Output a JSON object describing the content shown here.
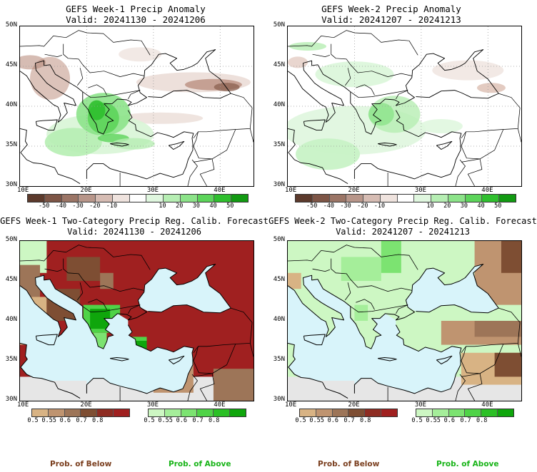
{
  "panels": [
    {
      "id": "tl",
      "title": "GEFS Week-1 Precip Anomaly",
      "valid": "Valid: 20241130 - 20241206"
    },
    {
      "id": "tr",
      "title": "GEFS Week-2 Precip Anomaly",
      "valid": "Valid: 20241207 - 20241213"
    },
    {
      "id": "bl",
      "title": "GEFS Week-1 Two-Category Precip Reg. Calib. Forecast",
      "valid": "Valid: 20241130 - 20241206"
    },
    {
      "id": "br",
      "title": "GEFS Week-2 Two-Category Precip Reg. Calib. Forecast",
      "valid": "Valid: 20241207 - 20241213"
    }
  ],
  "axes": {
    "lat_labels": [
      "50N",
      "45N",
      "40N",
      "35N",
      "30N"
    ],
    "lon_labels": [
      "10E",
      "20E",
      "30E",
      "40E"
    ]
  },
  "anomaly_colorbar": {
    "ticks": [
      "-50",
      "-40",
      "-30",
      "-20",
      "-10",
      "10",
      "20",
      "30",
      "40",
      "50"
    ],
    "colors": [
      "#5c3a2c",
      "#7d5546",
      "#9b7566",
      "#b8968a",
      "#d6bcb3",
      "#efe3de",
      "#ffffff",
      "#e0f7df",
      "#b6eeb3",
      "#8ce389",
      "#5cd45a",
      "#2fbf2e",
      "#129a12"
    ]
  },
  "prob_colorbar": {
    "below_ticks": [
      "0.5",
      "0.55",
      "0.6",
      "0.7",
      "0.8"
    ],
    "above_ticks": [
      "0.5",
      "0.55",
      "0.6",
      "0.7",
      "0.8"
    ],
    "below_colors": [
      "#d8b384",
      "#bf9470",
      "#9d7558",
      "#7e4e33",
      "#8e2c22",
      "#a02020"
    ],
    "above_colors": [
      "#cdf7c3",
      "#a5ee9a",
      "#7ce371",
      "#4fd347",
      "#2bc025",
      "#0fa60c"
    ]
  },
  "labels": {
    "below": "Prob. of Below",
    "above": "Prob. of Above"
  },
  "colors": {
    "below_label": "#7a3e1e",
    "above_label": "#18b418",
    "sea": "#d8f4fa",
    "no_data": "#e6e6e6"
  }
}
